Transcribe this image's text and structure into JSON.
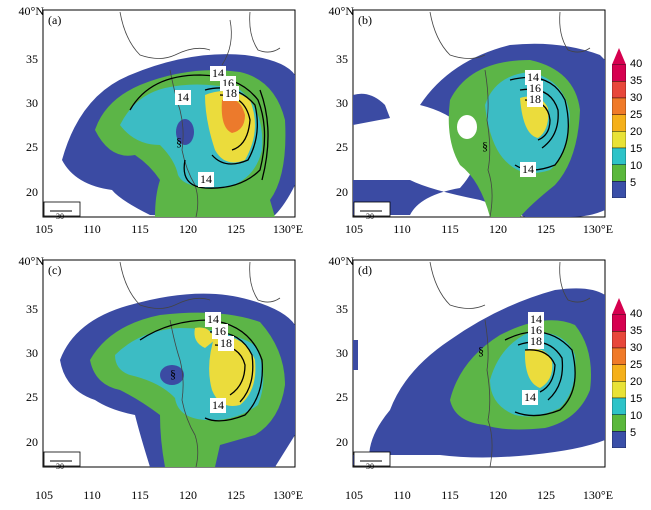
{
  "panels": [
    {
      "id": "a",
      "label": "(a)",
      "contour_labels": [
        "14",
        "16",
        "18",
        "14",
        "14"
      ],
      "ref_vector": "30"
    },
    {
      "id": "b",
      "label": "(b)",
      "contour_labels": [
        "14",
        "16",
        "18",
        "14"
      ],
      "ref_vector": "30"
    },
    {
      "id": "c",
      "label": "(c)",
      "contour_labels": [
        "14",
        "16",
        "18",
        "14"
      ],
      "ref_vector": "30"
    },
    {
      "id": "d",
      "label": "(d)",
      "contour_labels": [
        "14",
        "16",
        "18",
        "14"
      ],
      "ref_vector": "30"
    }
  ],
  "axes": {
    "y_top": "40°N",
    "y_ticks": [
      "35",
      "30",
      "25",
      "20"
    ],
    "x_ticks": [
      "105",
      "110",
      "115",
      "120",
      "125",
      "130°E"
    ]
  },
  "colorbar": {
    "levels": [
      "40",
      "35",
      "30",
      "25",
      "20",
      "15",
      "10",
      "5"
    ],
    "colors": [
      "#d6004f",
      "#e8473a",
      "#f07a28",
      "#f5b01a",
      "#e8e237",
      "#2ec3c8",
      "#5ab83c",
      "#3a4fa8"
    ]
  },
  "shading_colors": {
    "blue": "#3b4ba3",
    "green": "#5cb547",
    "cyan": "#3cbcc4",
    "yellow": "#ebdc3c",
    "orange": "#ec7a2c",
    "land": "#ffffff"
  }
}
